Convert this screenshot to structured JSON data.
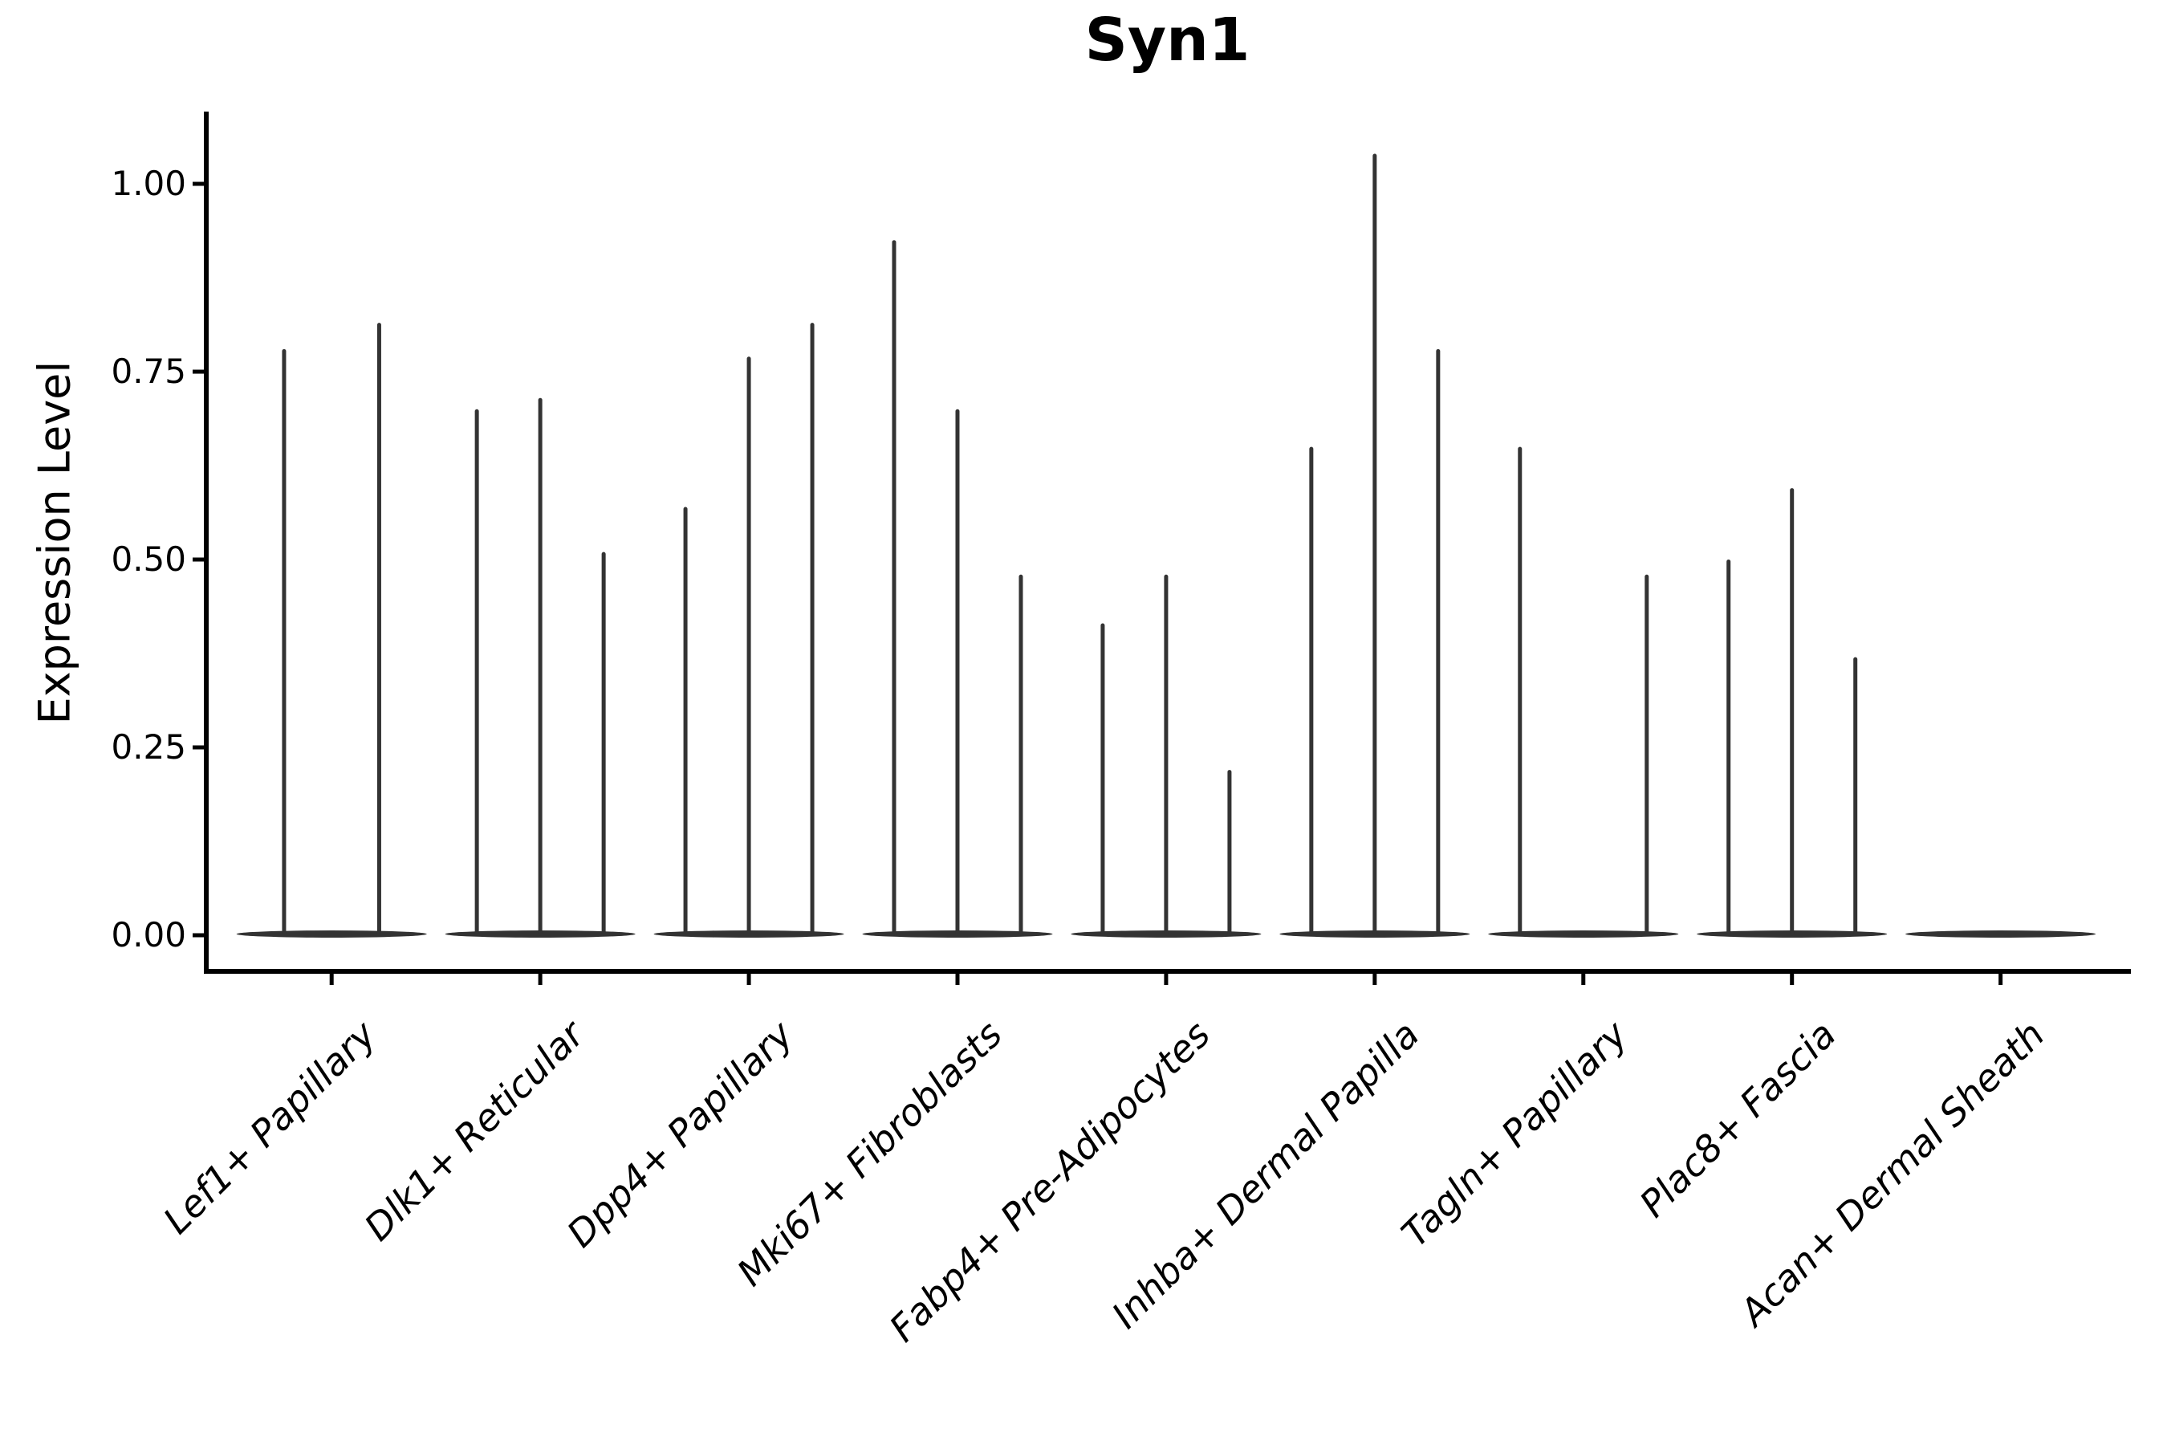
{
  "colors": {
    "violin": "#333333",
    "axes": "#000000",
    "text": "#000000",
    "background": "#ffffff"
  },
  "chart_data": {
    "type": "violin",
    "title": "Syn1",
    "xlabel": "",
    "ylabel": "Expression Level",
    "grid": false,
    "legend": "none",
    "ylim": [
      -0.05,
      1.09
    ],
    "y_ticks": [
      {
        "value": 0.0,
        "label": "0.00"
      },
      {
        "value": 0.25,
        "label": "0.25"
      },
      {
        "value": 0.5,
        "label": "0.50"
      },
      {
        "value": 0.75,
        "label": "0.75"
      },
      {
        "value": 1.0,
        "label": "1.00"
      }
    ],
    "categories": [
      "Lef1+ Papillary",
      "Dlk1+ Reticular",
      "Dpp4+ Papillary",
      "Mki67+ Fibroblasts",
      "Fabp4+ Pre-Adipocytes",
      "Inhba+ Dermal Papilla",
      "Tagln+ Papillary",
      "Plac8+ Fascia",
      "Acan+ Dermal Sheath"
    ],
    "violins": [
      {
        "category": "Lef1+ Papillary",
        "n_groups": 2,
        "spike_values": [
          0.78,
          0.815
        ]
      },
      {
        "category": "Dlk1+ Reticular",
        "n_groups": 3,
        "spike_values": [
          0.7,
          0.715,
          0.51
        ]
      },
      {
        "category": "Dpp4+ Papillary",
        "n_groups": 3,
        "spike_values": [
          0.57,
          0.77,
          0.815
        ]
      },
      {
        "category": "Mki67+ Fibroblasts",
        "n_groups": 3,
        "spike_values": [
          0.925,
          0.7,
          0.48
        ]
      },
      {
        "category": "Fabp4+ Pre-Adipocytes",
        "n_groups": 3,
        "spike_values": [
          0.415,
          0.48,
          0.22
        ]
      },
      {
        "category": "Inhba+ Dermal Papilla",
        "n_groups": 3,
        "spike_values": [
          0.65,
          1.04,
          0.78
        ]
      },
      {
        "category": "Tagln+ Papillary",
        "n_groups": 3,
        "spike_values": [
          0.65,
          0,
          0.48
        ]
      },
      {
        "category": "Plac8+ Fascia",
        "n_groups": 3,
        "spike_values": [
          0.5,
          0.595,
          0.37
        ]
      },
      {
        "category": "Acan+ Dermal Sheath",
        "n_groups": 1,
        "spike_values": [
          0
        ]
      }
    ]
  }
}
